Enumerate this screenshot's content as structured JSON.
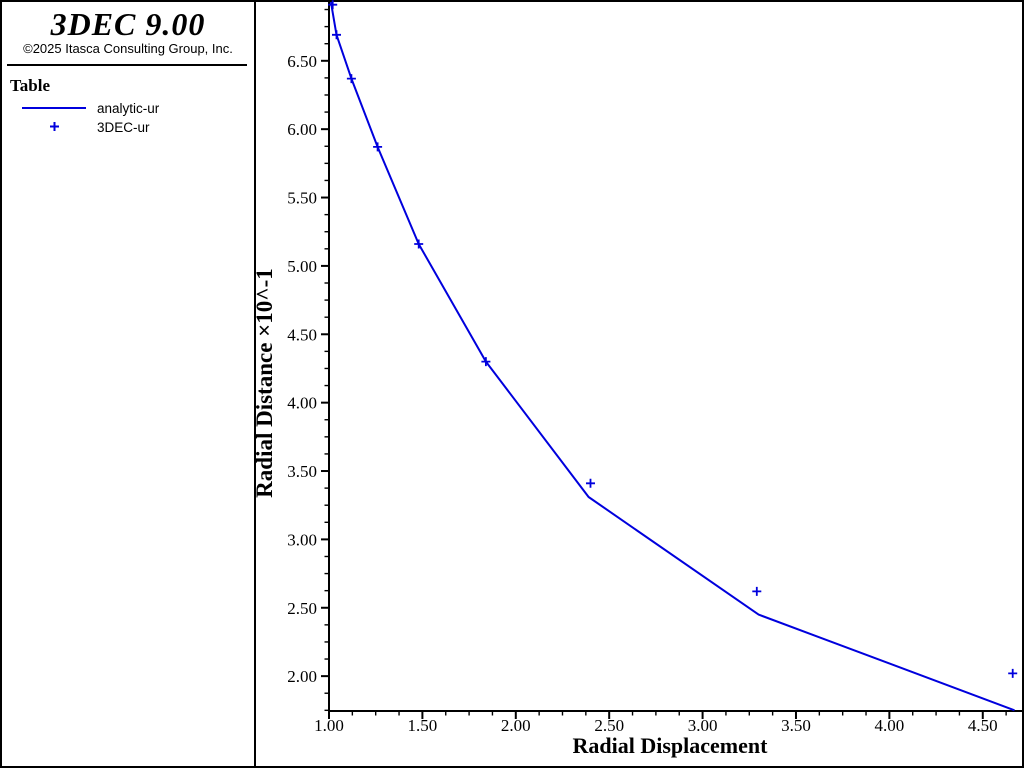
{
  "header": {
    "app_title": "3DEC 9.00",
    "copyright": "©2025 Itasca Consulting Group, Inc."
  },
  "legend": {
    "title": "Table",
    "items": [
      {
        "label": "analytic-ur",
        "marker": "line"
      },
      {
        "label": "3DEC-ur",
        "marker": "plus"
      }
    ]
  },
  "colors": {
    "series": "#0000dd",
    "axis": "#000000",
    "background": "#ffffff"
  },
  "chart_data": {
    "type": "line",
    "title": "",
    "xlabel": "Radial Displacement",
    "ylabel": "Radial Distance ×10^-1",
    "xlim": [
      1.0,
      4.71
    ],
    "ylim": [
      1.745,
      6.93
    ],
    "grid": false,
    "legend_position": "left-panel",
    "minor_tick_step": 0.125,
    "x_ticks": {
      "values": [
        1.0,
        1.5,
        2.0,
        2.5,
        3.0,
        3.5,
        4.0,
        4.5
      ],
      "labels": [
        "1.00",
        "1.50",
        "2.00",
        "2.50",
        "3.00",
        "3.50",
        "4.00",
        "4.50"
      ]
    },
    "y_ticks": {
      "values": [
        2.0,
        2.5,
        3.0,
        3.5,
        4.0,
        4.5,
        5.0,
        5.5,
        6.0,
        6.5
      ],
      "labels": [
        "2.00",
        "2.50",
        "3.00",
        "3.50",
        "4.00",
        "4.50",
        "5.00",
        "5.50",
        "6.00",
        "6.50"
      ]
    },
    "series": [
      {
        "name": "analytic-ur",
        "style": "line",
        "points": [
          [
            1.01,
            6.93
          ],
          [
            1.04,
            6.69
          ],
          [
            1.12,
            6.37
          ],
          [
            1.26,
            5.87
          ],
          [
            1.48,
            5.16
          ],
          [
            1.84,
            4.3
          ],
          [
            2.39,
            3.31
          ],
          [
            3.3,
            2.45
          ],
          [
            4.67,
            1.75
          ]
        ]
      },
      {
        "name": "3DEC-ur",
        "style": "plus-markers",
        "points": [
          [
            1.02,
            6.91
          ],
          [
            1.04,
            6.69
          ],
          [
            1.12,
            6.37
          ],
          [
            1.26,
            5.87
          ],
          [
            1.48,
            5.16
          ],
          [
            1.84,
            4.3
          ],
          [
            2.4,
            3.41
          ],
          [
            3.29,
            2.62
          ],
          [
            4.66,
            2.02
          ]
        ]
      }
    ]
  }
}
